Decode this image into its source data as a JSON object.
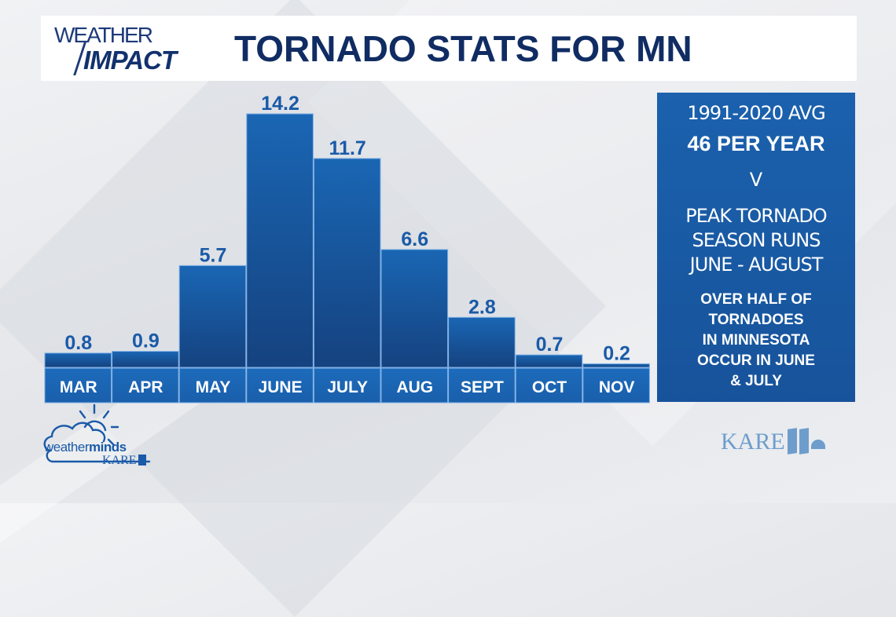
{
  "header": {
    "logo_line1": "WEATHER",
    "logo_line2": "IMPACT",
    "title": "TORNADO STATS FOR MN"
  },
  "chart_data": {
    "type": "bar",
    "title": "TORNADO STATS FOR MN",
    "xlabel": "",
    "ylabel": "",
    "ylim": [
      0,
      14.2
    ],
    "categories": [
      "MAR",
      "APR",
      "MAY",
      "JUNE",
      "JULY",
      "AUG",
      "SEPT",
      "OCT",
      "NOV"
    ],
    "values": [
      0.8,
      0.9,
      5.7,
      14.2,
      11.7,
      6.6,
      2.8,
      0.7,
      0.2
    ],
    "value_labels": [
      "0.8",
      "0.9",
      "5.7",
      "14.2",
      "11.7",
      "6.6",
      "2.8",
      "0.7",
      "0.2"
    ],
    "grid": false,
    "colors": {
      "bar_top": "#1a66b4",
      "bar_bottom": "#15427f",
      "label_row": "#1b65b4",
      "value_text": "#1a5aa8"
    }
  },
  "panel": {
    "avg_period": "1991-2020 AVG",
    "avg_value": "46 PER YEAR",
    "divider": "V",
    "peak_lines": [
      "PEAK TORNADO",
      "SEASON RUNS",
      "JUNE - AUGUST"
    ],
    "note_lines": [
      "OVER HALF OF",
      "TORNADOES",
      "IN MINNESOTA",
      "OCCUR IN JUNE",
      "& JULY"
    ]
  },
  "branding": {
    "weatherminds_part1": "weather",
    "weatherminds_part2": "minds",
    "weatherminds_station": "KARE",
    "station_logo": "KARE"
  }
}
